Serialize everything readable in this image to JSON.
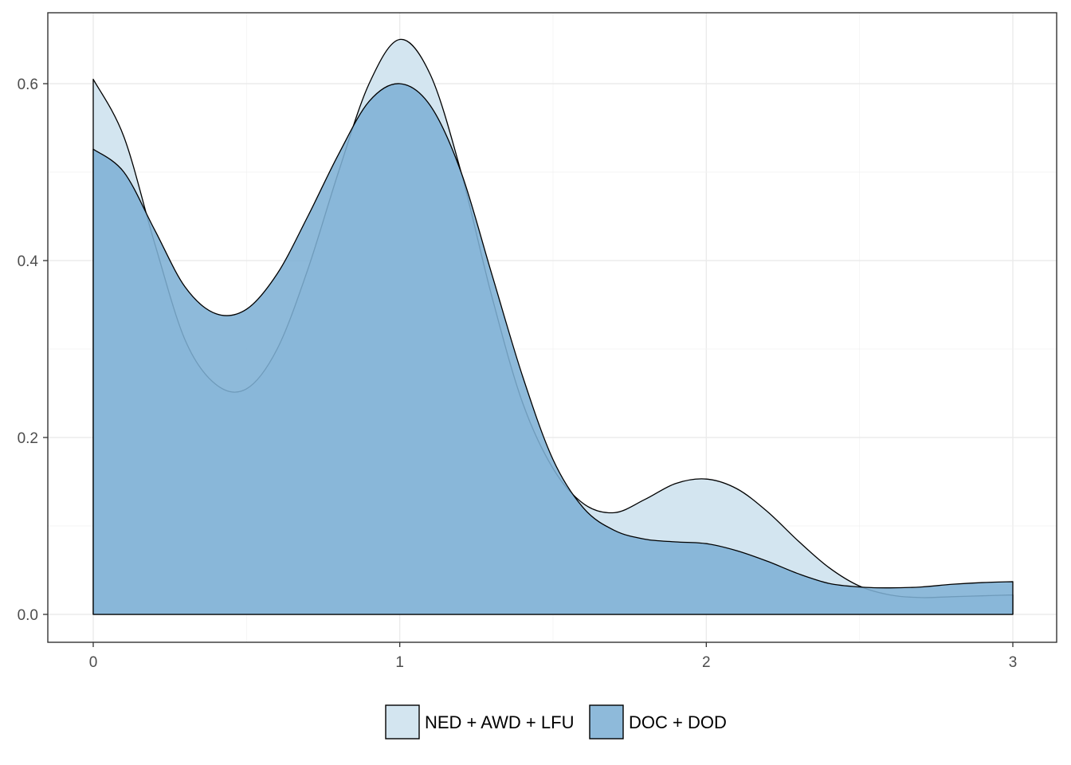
{
  "chart_data": {
    "type": "area",
    "x_range": [
      0,
      3
    ],
    "ylim": [
      0,
      0.65
    ],
    "x_ticks": [
      "0",
      "1",
      "2",
      "3"
    ],
    "y_ticks": [
      "0.0",
      "0.2",
      "0.4",
      "0.6"
    ],
    "grid": true,
    "legend_position": "bottom",
    "series": [
      {
        "name": "NED + AWD + LFU",
        "color": "#d3e5f0",
        "x": [
          0,
          0.1,
          0.2,
          0.3,
          0.4,
          0.5,
          0.6,
          0.7,
          0.8,
          0.9,
          1.0,
          1.1,
          1.2,
          1.3,
          1.4,
          1.5,
          1.6,
          1.7,
          1.8,
          1.9,
          2.0,
          2.1,
          2.2,
          2.3,
          2.4,
          2.5,
          2.6,
          2.7,
          2.8,
          2.9,
          3.0
        ],
        "y": [
          0.605,
          0.54,
          0.42,
          0.31,
          0.26,
          0.255,
          0.3,
          0.39,
          0.5,
          0.6,
          0.65,
          0.61,
          0.5,
          0.36,
          0.24,
          0.165,
          0.125,
          0.115,
          0.13,
          0.148,
          0.153,
          0.142,
          0.116,
          0.083,
          0.053,
          0.032,
          0.022,
          0.019,
          0.02,
          0.021,
          0.022
        ]
      },
      {
        "name": "DOC + DOD",
        "color": "#7eb0d5",
        "x": [
          0,
          0.1,
          0.2,
          0.3,
          0.4,
          0.5,
          0.6,
          0.7,
          0.8,
          0.9,
          1.0,
          1.1,
          1.2,
          1.3,
          1.4,
          1.5,
          1.6,
          1.7,
          1.8,
          1.9,
          2.0,
          2.1,
          2.2,
          2.3,
          2.4,
          2.5,
          2.6,
          2.7,
          2.8,
          2.9,
          3.0
        ],
        "y": [
          0.526,
          0.5,
          0.435,
          0.37,
          0.34,
          0.345,
          0.385,
          0.45,
          0.52,
          0.58,
          0.6,
          0.575,
          0.5,
          0.385,
          0.27,
          0.175,
          0.12,
          0.095,
          0.085,
          0.082,
          0.08,
          0.072,
          0.06,
          0.046,
          0.035,
          0.031,
          0.03,
          0.031,
          0.034,
          0.036,
          0.037
        ]
      }
    ]
  }
}
